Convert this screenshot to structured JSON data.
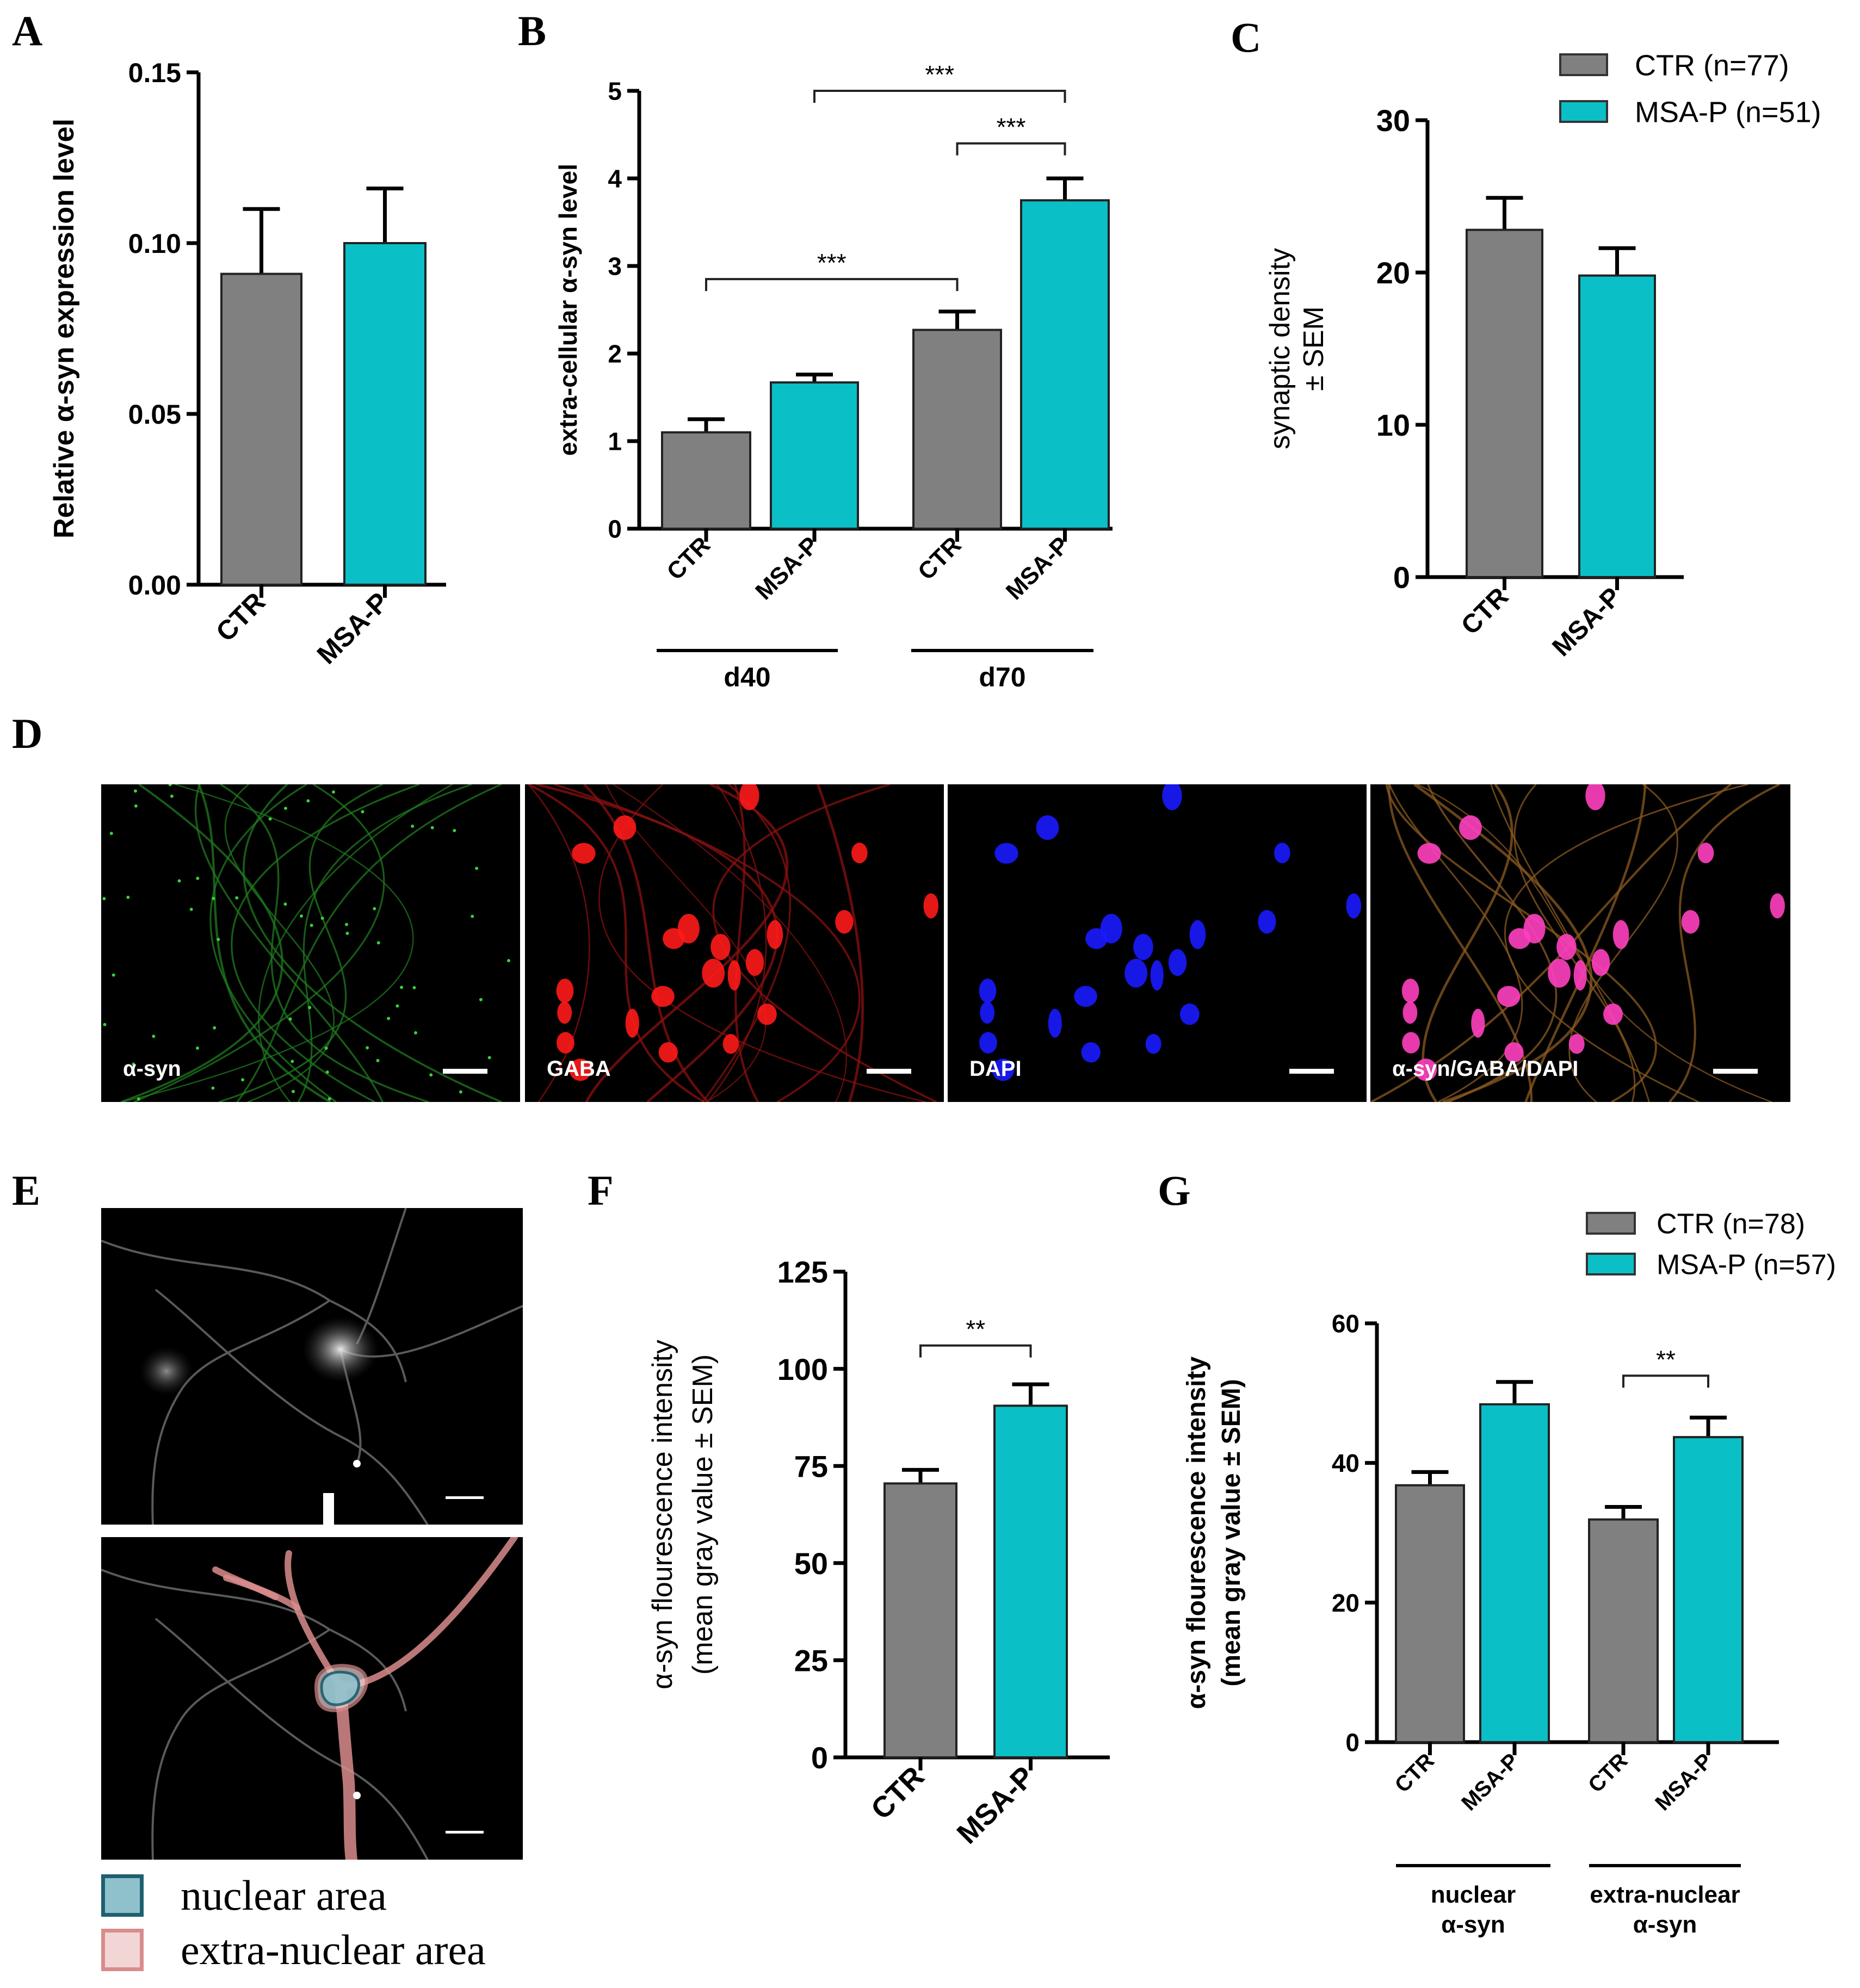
{
  "colors": {
    "ctr": "#808080",
    "msa": "#0BBFC7",
    "axis": "#000000",
    "nuclear_fill": "#8FC1CC",
    "nuclear_stroke": "#1E5F70",
    "extra_fill": "#F2D6D6",
    "extra_stroke": "#D98C8C"
  },
  "panel_letters": {
    "A": "A",
    "B": "B",
    "C": "C",
    "D": "D",
    "E": "E",
    "F": "F",
    "G": "G"
  },
  "chart_data": [
    {
      "id": "A",
      "type": "bar",
      "title": "",
      "ylabel": "Relative α-syn expression level",
      "xlabel": "",
      "categories": [
        "CTR",
        "MSA-P"
      ],
      "values": [
        0.091,
        0.1
      ],
      "error_upper": [
        0.11,
        0.116
      ],
      "yticks": [
        "0.00",
        "0.05",
        "0.10",
        "0.15"
      ],
      "ylim": [
        0,
        0.15
      ],
      "grid": false,
      "legend": null,
      "significance": []
    },
    {
      "id": "B",
      "type": "bar",
      "title": "",
      "ylabel": "extra-cellular α-syn level",
      "xlabel": "",
      "categories": [
        "CTR",
        "MSA-P",
        "CTR",
        "MSA-P"
      ],
      "groups": [
        {
          "label": "d40",
          "indices": [
            0,
            1
          ]
        },
        {
          "label": "d70",
          "indices": [
            2,
            3
          ]
        }
      ],
      "values": [
        1.1,
        1.67,
        2.27,
        3.75
      ],
      "error_upper": [
        1.25,
        1.76,
        2.48,
        4.0
      ],
      "yticks": [
        "0",
        "1",
        "2",
        "3",
        "4",
        "5"
      ],
      "ylim": [
        0,
        5
      ],
      "grid": false,
      "legend": null,
      "significance": [
        {
          "from": 0,
          "to": 2,
          "label": "***",
          "y": 2.85
        },
        {
          "from": 1,
          "to": 3,
          "label": "***",
          "y": 5.0
        },
        {
          "from": 2,
          "to": 3,
          "label": "***",
          "y": 4.4
        }
      ]
    },
    {
      "id": "C",
      "type": "bar",
      "title": "",
      "ylabel": "synaptic density ± SEM",
      "ylabel_lines": [
        "synaptic density",
        "± SEM"
      ],
      "xlabel": "",
      "categories": [
        "CTR",
        "MSA-P"
      ],
      "values": [
        22.8,
        19.8
      ],
      "error_upper": [
        24.9,
        21.6
      ],
      "yticks": [
        "0",
        "10",
        "20",
        "30"
      ],
      "ylim": [
        0,
        30
      ],
      "grid": false,
      "legend": {
        "position": "top-right",
        "entries": [
          "CTR (n=77)",
          "MSA-P (n=51)"
        ]
      },
      "significance": []
    },
    {
      "id": "F",
      "type": "bar",
      "title": "",
      "ylabel": "α-syn flourescence intensity (mean gray value ± SEM)",
      "ylabel_lines": [
        "α-syn flourescence intensity",
        "(mean gray value ± SEM)"
      ],
      "xlabel": "",
      "categories": [
        "CTR",
        "MSA-P"
      ],
      "values": [
        70.5,
        90.5
      ],
      "error_upper": [
        74.0,
        96.0
      ],
      "yticks": [
        "0",
        "25",
        "50",
        "75",
        "100",
        "125"
      ],
      "ylim": [
        0,
        125
      ],
      "grid": false,
      "legend": null,
      "significance": [
        {
          "from": 0,
          "to": 1,
          "label": "**",
          "y": 106
        }
      ]
    },
    {
      "id": "G",
      "type": "bar",
      "title": "",
      "ylabel": "α-syn flourescence intensity (mean gray value ± SEM)",
      "ylabel_lines": [
        "α-syn flourescence intensity",
        "(mean gray value ± SEM)"
      ],
      "xlabel": "",
      "categories": [
        "CTR",
        "MSA-P",
        "CTR",
        "MSA-P"
      ],
      "groups": [
        {
          "label": "nuclear",
          "label2": "α-syn",
          "indices": [
            0,
            1
          ]
        },
        {
          "label": "extra-nuclear",
          "label2": "α-syn",
          "indices": [
            2,
            3
          ]
        }
      ],
      "values": [
        36.8,
        48.4,
        31.9,
        43.7
      ],
      "error_upper": [
        38.7,
        51.6,
        33.7,
        46.5
      ],
      "yticks": [
        "0",
        "20",
        "40",
        "60"
      ],
      "ylim": [
        0,
        60
      ],
      "grid": false,
      "legend": {
        "position": "top-right",
        "entries": [
          "CTR (n=78)",
          "MSA-P (n=57)"
        ]
      },
      "significance": [
        {
          "from": 2,
          "to": 3,
          "label": "**",
          "y": 52.5
        }
      ]
    }
  ],
  "panel_d": {
    "images": [
      {
        "label": "α-syn",
        "channel": "green"
      },
      {
        "label": "GABA",
        "channel": "red"
      },
      {
        "label": "DAPI",
        "channel": "blue"
      },
      {
        "label": "α-syn/GABA/DAPI",
        "channel": "merge"
      }
    ]
  },
  "panel_e": {
    "legend": [
      {
        "label": "nuclear area",
        "kind": "nuclear"
      },
      {
        "label": "extra-nuclear area",
        "kind": "extra"
      }
    ]
  }
}
